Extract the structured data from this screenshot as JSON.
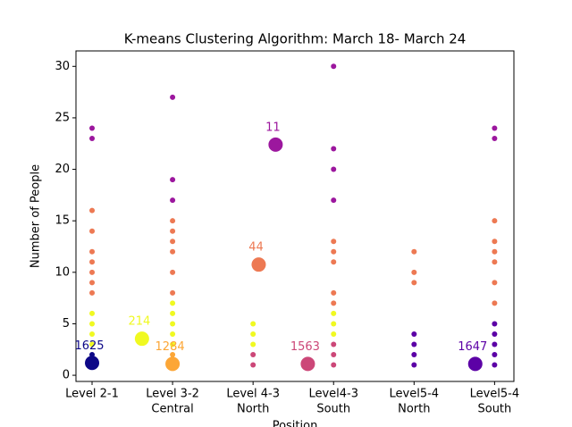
{
  "chart_data": {
    "type": "scatter",
    "title": "K-means Clustering Algorithm: March 18- March 24",
    "xlabel": "Position",
    "ylabel": "Number of People",
    "xlim": [
      -0.2,
      5.24
    ],
    "ylim": [
      -0.6,
      31.5
    ],
    "xticks": [
      {
        "value": 0,
        "label": [
          "Level 2-1"
        ]
      },
      {
        "value": 1,
        "label": [
          "Level 3-2",
          "Central"
        ]
      },
      {
        "value": 2,
        "label": [
          "Level 4-3",
          "North"
        ]
      },
      {
        "value": 3,
        "label": [
          "Level4-3",
          "South"
        ]
      },
      {
        "value": 4,
        "label": [
          "Level5-4",
          "North"
        ]
      },
      {
        "value": 5,
        "label": [
          "Level5-4",
          "South"
        ]
      }
    ],
    "yticks": [
      0,
      5,
      10,
      15,
      20,
      25,
      30
    ],
    "series": [
      {
        "color": "#0d0887",
        "x": [
          0,
          0
        ],
        "values": [
          2,
          1
        ],
        "center_x": 0,
        "center_y": 1.2,
        "count": 1625
      },
      {
        "color": "#f0f921",
        "x": [
          0,
          0,
          0,
          0,
          1,
          1,
          1,
          1,
          1,
          2,
          2,
          2,
          3,
          3,
          3
        ],
        "values": [
          6,
          5,
          4,
          3,
          7,
          6,
          5,
          4,
          3,
          5,
          4,
          3,
          6,
          5,
          4
        ],
        "center_x": 0.62,
        "center_y": 3.55,
        "count": 214
      },
      {
        "color": "#fca636",
        "x": [
          1,
          1
        ],
        "values": [
          2,
          1
        ],
        "center_x": 1,
        "center_y": 1.1,
        "count": 1284
      },
      {
        "color": "#ed7953",
        "x": [
          0,
          0,
          0,
          0,
          0,
          0,
          0,
          1,
          1,
          1,
          1,
          1,
          1,
          3,
          3,
          3,
          3,
          3,
          4,
          4,
          4,
          5,
          5,
          5,
          5,
          5,
          5
        ],
        "values": [
          16,
          14,
          12,
          11,
          10,
          9,
          8,
          15,
          14,
          13,
          12,
          10,
          8,
          13,
          12,
          11,
          8,
          7,
          12,
          10,
          9,
          15,
          13,
          12,
          11,
          9,
          7
        ],
        "center_x": 2.07,
        "center_y": 10.75,
        "count": 44
      },
      {
        "color": "#9c179e",
        "x": [
          0,
          0,
          1,
          1,
          1,
          3,
          3,
          3,
          3,
          5,
          5
        ],
        "values": [
          24,
          23,
          27,
          19,
          17,
          30,
          22,
          20,
          17,
          24,
          23
        ],
        "center_x": 2.28,
        "center_y": 22.4,
        "count": 11
      },
      {
        "color": "#cc4778",
        "x": [
          2,
          2,
          3,
          3,
          3
        ],
        "values": [
          2,
          1,
          3,
          2,
          1
        ],
        "center_x": 2.68,
        "center_y": 1.1,
        "count": 1563
      },
      {
        "color": "#5c01a6",
        "x": [
          4,
          4,
          4,
          4,
          5,
          5,
          5,
          5,
          5
        ],
        "values": [
          4,
          3,
          2,
          1,
          5,
          4,
          3,
          2,
          1
        ],
        "center_x": 4.76,
        "center_y": 1.1,
        "count": 1647
      }
    ]
  }
}
